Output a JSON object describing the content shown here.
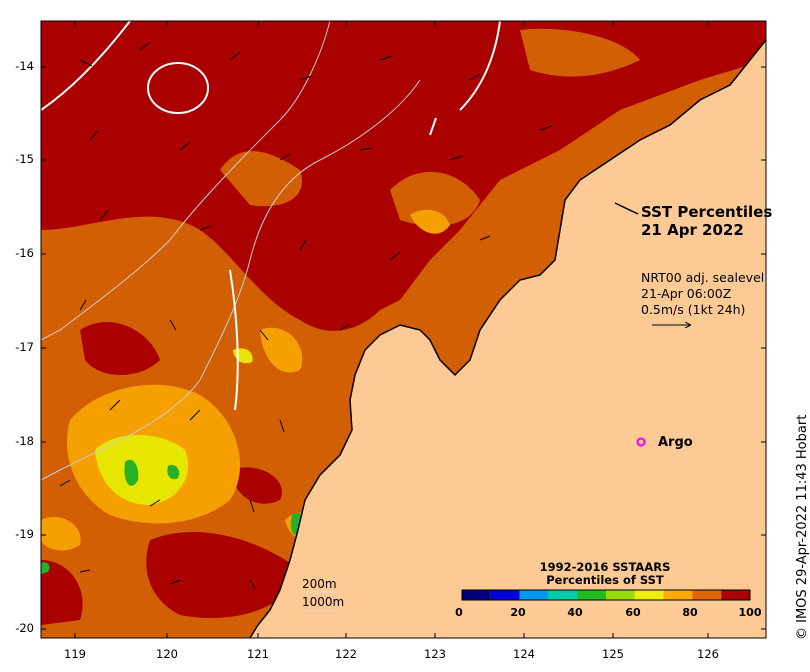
{
  "title": {
    "line1": "SST Percentiles",
    "line2": "21 Apr 2022"
  },
  "current_info": {
    "line1": "NRT00 adj. sealevel",
    "line2": "21-Apr 06:00Z",
    "line3": "0.5m/s (1kt 24h)"
  },
  "argo": {
    "label": "Argo",
    "marker_color": "#ee00ee"
  },
  "credit": "© IMOS 29-Apr-2022 11:43 Hobart",
  "y_ticks": [
    "-14",
    "-15",
    "-16",
    "-17",
    "-18",
    "-19",
    "-20"
  ],
  "x_ticks": [
    "119",
    "120",
    "121",
    "122",
    "123",
    "124",
    "125",
    "126"
  ],
  "colorbar": {
    "title_line1": "1992-2016 SSTAARS",
    "title_line2": "Percentiles of SST",
    "tick_labels": [
      "0",
      "20",
      "40",
      "60",
      "80",
      "100"
    ],
    "colors": [
      "#00007f",
      "#0000dd",
      "#0099ee",
      "#00ccaa",
      "#22bb22",
      "#99dd00",
      "#eeee00",
      "#ffaa00",
      "#dd6600",
      "#aa0000"
    ]
  },
  "contour_legend": {
    "depth1": "200m",
    "depth2": "1000m"
  },
  "colors": {
    "land": "#fdca95",
    "sst_high": "#aa0000",
    "sst_mid": "#d35f05",
    "sst_low": "#f5a000",
    "sst_lower": "#e6e600",
    "sst_green": "#27b127"
  }
}
